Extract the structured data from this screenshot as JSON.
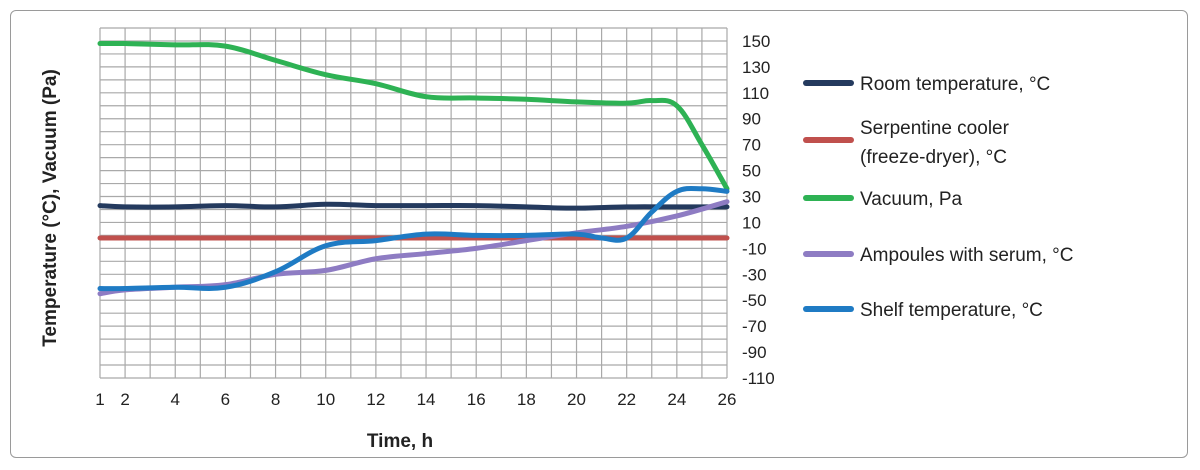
{
  "chart_data": {
    "type": "line",
    "xlabel": "Time, h",
    "ylabel": "Temperature (°C), Vacuum (Pa)",
    "x_ticks": [
      "1",
      "2",
      "4",
      "6",
      "8",
      "10",
      "12",
      "14",
      "16",
      "18",
      "20",
      "22",
      "24",
      "26"
    ],
    "y_ticks": [
      "150",
      "130",
      "110",
      "90",
      "70",
      "50",
      "30",
      "10",
      "-10",
      "-30",
      "-50",
      "-70",
      "-90",
      "-110"
    ],
    "xlim": [
      1,
      26
    ],
    "ylim": [
      -110,
      160
    ],
    "grid": true,
    "legend_position": "right",
    "series": [
      {
        "name": "Room temperature, °C",
        "color": "#243a5e",
        "x": [
          1,
          2,
          4,
          6,
          8,
          10,
          12,
          14,
          16,
          18,
          20,
          22,
          24,
          26
        ],
        "y": [
          23,
          22,
          22,
          23,
          22,
          24,
          23,
          23,
          23,
          22,
          21,
          22,
          22,
          22
        ]
      },
      {
        "name": "Serpentine cooler\n(freeze-dryer), °C",
        "color": "#c0504d",
        "x": [
          1,
          26
        ],
        "y": [
          -2,
          -2
        ]
      },
      {
        "name": "Vacuum, Pa",
        "color": "#2eb254",
        "x": [
          1,
          2,
          4,
          6,
          8,
          10,
          12,
          14,
          16,
          18,
          20,
          22,
          23,
          24,
          25,
          26
        ],
        "y": [
          148,
          148,
          147,
          146,
          135,
          124,
          117,
          107,
          106,
          105,
          103,
          102,
          104,
          100,
          70,
          36
        ]
      },
      {
        "name": "Ampoules with serum, °C",
        "color": "#8e7cc3",
        "x": [
          1,
          2,
          4,
          6,
          8,
          10,
          12,
          14,
          16,
          18,
          20,
          22,
          24,
          26
        ],
        "y": [
          -45,
          -42,
          -40,
          -38,
          -30,
          -27,
          -18,
          -14,
          -10,
          -4,
          2,
          7,
          15,
          26
        ]
      },
      {
        "name": "Shelf temperature, °C",
        "color": "#1f7bc4",
        "x": [
          1,
          2,
          4,
          6,
          8,
          10,
          12,
          14,
          16,
          18,
          20,
          21,
          22,
          23,
          24,
          25,
          26
        ],
        "y": [
          -41,
          -41,
          -40,
          -40,
          -28,
          -8,
          -4,
          1,
          0,
          0,
          1,
          -2,
          -2,
          18,
          34,
          36,
          34
        ]
      }
    ]
  }
}
